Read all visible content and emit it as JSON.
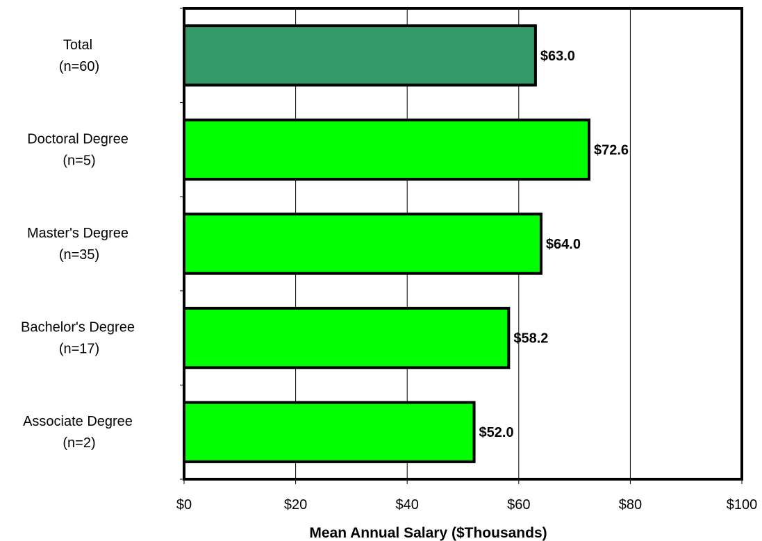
{
  "chart_data": {
    "type": "bar",
    "orientation": "horizontal",
    "categories": [
      {
        "name": "Total",
        "n": "(n=60)"
      },
      {
        "name": "Doctoral Degree",
        "n": "(n=5)"
      },
      {
        "name": "Master's Degree",
        "n": "(n=35)"
      },
      {
        "name": "Bachelor's Degree",
        "n": "(n=17)"
      },
      {
        "name": "Associate Degree",
        "n": "(n=2)"
      }
    ],
    "values": [
      63.0,
      72.6,
      64.0,
      58.2,
      52.0
    ],
    "data_labels": [
      "$63.0",
      "$72.6",
      "$64.0",
      "$58.2",
      "$52.0"
    ],
    "bar_colors": [
      "#339966",
      "#00ff00",
      "#00ff00",
      "#00ff00",
      "#00ff00"
    ],
    "xlabel": "Mean Annual Salary ($Thousands)",
    "xlim": [
      0,
      100
    ],
    "x_ticks": [
      0,
      20,
      40,
      60,
      80,
      100
    ],
    "x_tick_labels": [
      "$0",
      "$20",
      "$40",
      "$60",
      "$80",
      "$100"
    ],
    "grid": "vertical"
  }
}
